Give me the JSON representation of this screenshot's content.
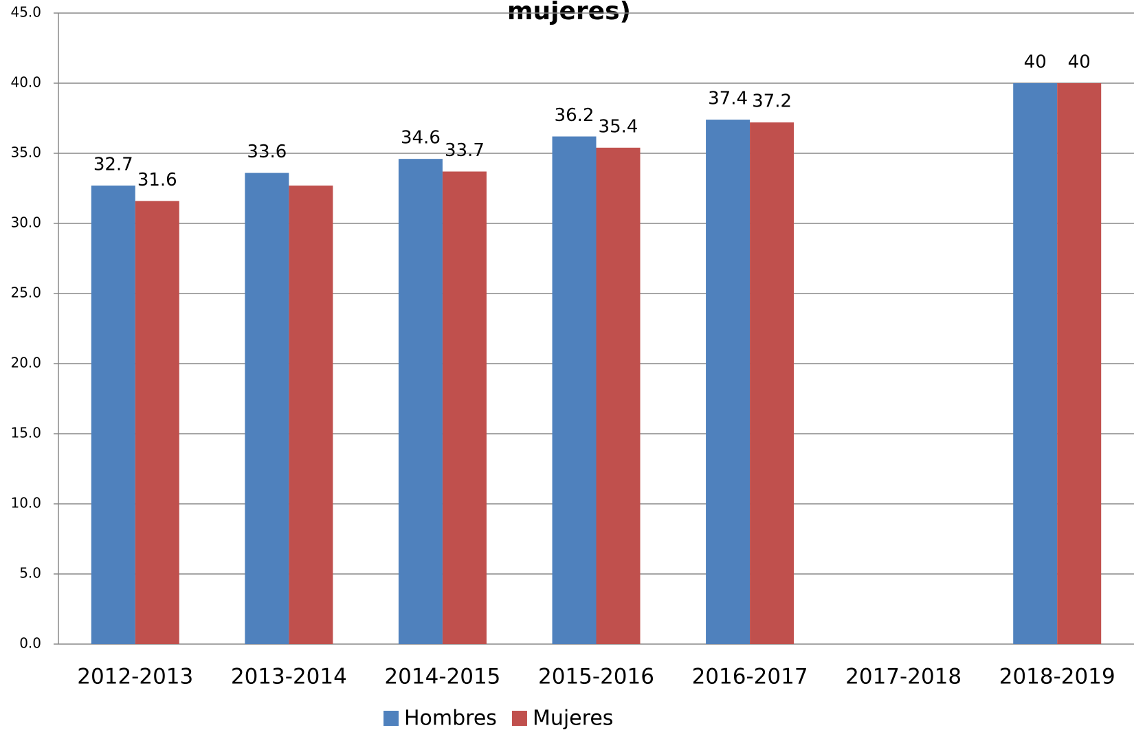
{
  "chart_data": {
    "type": "bar",
    "title": "mujeres)",
    "categories": [
      "2012-2013",
      "2013-2014",
      "2014-2015",
      "2015-2016",
      "2016-2017",
      "2017-2018",
      "2018-2019"
    ],
    "series": [
      {
        "name": "Hombres",
        "color": "#4f81bd",
        "values": [
          32.7,
          33.6,
          34.6,
          36.2,
          37.4,
          null,
          40
        ]
      },
      {
        "name": "Mujeres",
        "color": "#c0504d",
        "values": [
          31.6,
          32.7,
          33.7,
          35.4,
          37.2,
          null,
          40
        ],
        "value_labels": [
          "31.6",
          null,
          "33.7",
          "35.4",
          "37.2",
          null,
          "40"
        ]
      }
    ],
    "ylim": [
      0,
      45
    ],
    "yticks": [
      {
        "value": 0,
        "label": "0.0"
      },
      {
        "value": 5,
        "label": "5.0"
      },
      {
        "value": 10,
        "label": "10.0"
      },
      {
        "value": 15,
        "label": "15.0"
      },
      {
        "value": 20,
        "label": "20.0"
      },
      {
        "value": 25,
        "label": "25.0"
      },
      {
        "value": 30,
        "label": "30.0"
      },
      {
        "value": 35,
        "label": "35.0"
      },
      {
        "value": 40,
        "label": "40.0"
      },
      {
        "value": 45,
        "label": "45.0"
      }
    ],
    "grid": true,
    "legend": "bottom"
  }
}
